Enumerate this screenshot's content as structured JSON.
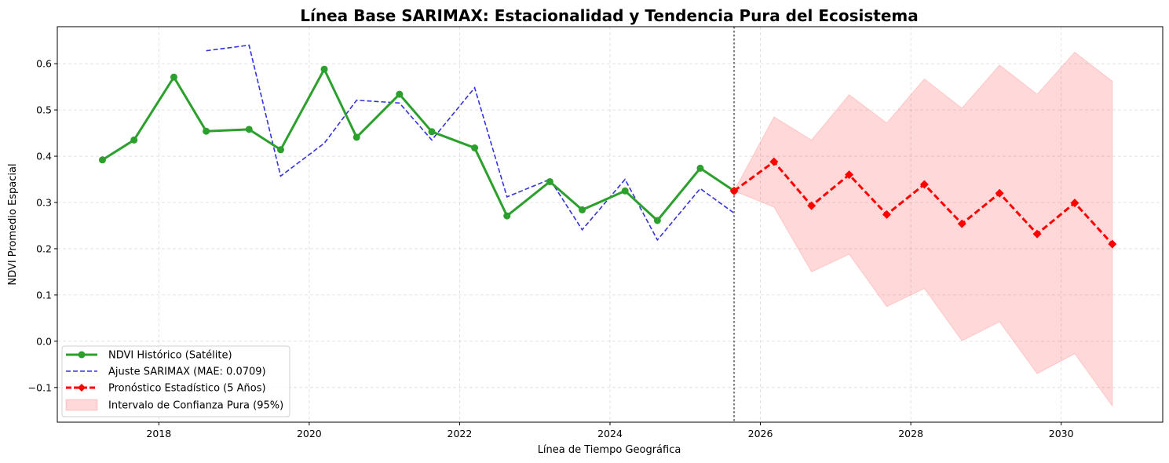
{
  "chart_data": {
    "type": "line",
    "title": "Línea Base SARIMAX: Estacionalidad y Tendencia Pura del Ecosistema",
    "xlabel": "Línea de Tiempo Geográfica",
    "ylabel": "NDVI Promedio Espacial",
    "xlim": [
      2016.65,
      2031.35
    ],
    "ylim": [
      -0.175,
      0.68
    ],
    "x_ticks": [
      2018,
      2020,
      2022,
      2024,
      2026,
      2028,
      2030
    ],
    "x_tick_labels": [
      "2018",
      "2020",
      "2022",
      "2024",
      "2026",
      "2028",
      "2030"
    ],
    "y_ticks": [
      -0.1,
      0.0,
      0.1,
      0.2,
      0.3,
      0.4,
      0.5,
      0.6
    ],
    "y_tick_labels": [
      "−0.1",
      "0.0",
      "0.1",
      "0.2",
      "0.3",
      "0.4",
      "0.5",
      "0.6"
    ],
    "grid": true,
    "legend_position": "bottom-left",
    "vline": {
      "x": 2025.65,
      "color": "#808080",
      "style": "dotted"
    },
    "series": [
      {
        "name": "NDVI Histórico (Satélite)",
        "kind": "line-marker",
        "color": "#2ca02c",
        "x": [
          2017.25,
          2017.67,
          2018.2,
          2018.63,
          2019.2,
          2019.62,
          2020.2,
          2020.63,
          2021.2,
          2021.63,
          2022.2,
          2022.63,
          2023.2,
          2023.63,
          2024.2,
          2024.63,
          2025.2,
          2025.65
        ],
        "y": [
          0.392,
          0.435,
          0.571,
          0.454,
          0.458,
          0.414,
          0.588,
          0.441,
          0.534,
          0.453,
          0.418,
          0.271,
          0.345,
          0.284,
          0.325,
          0.261,
          0.374,
          0.325
        ]
      },
      {
        "name": "Ajuste SARIMAX (MAE: 0.0709)",
        "kind": "dashed-line",
        "color": "#3333dd",
        "x": [
          2018.63,
          2019.2,
          2019.62,
          2020.2,
          2020.63,
          2021.2,
          2021.63,
          2022.2,
          2022.63,
          2023.2,
          2023.63,
          2024.2,
          2024.63,
          2025.2,
          2025.65
        ],
        "y": [
          0.628,
          0.64,
          0.357,
          0.428,
          0.521,
          0.515,
          0.435,
          0.548,
          0.312,
          0.35,
          0.241,
          0.35,
          0.219,
          0.33,
          0.277
        ]
      },
      {
        "name": "Pronóstico Estadístico (5 Años)",
        "kind": "dashed-marker",
        "color": "#ff0000",
        "x": [
          2025.65,
          2026.18,
          2026.68,
          2027.18,
          2027.68,
          2028.18,
          2028.68,
          2029.18,
          2029.68,
          2030.18,
          2030.68
        ],
        "y": [
          0.325,
          0.388,
          0.293,
          0.36,
          0.274,
          0.339,
          0.254,
          0.32,
          0.232,
          0.299,
          0.21
        ]
      }
    ],
    "confidence_band": {
      "name": "Intervalo de Confianza Pura (95%)",
      "color": "#ff0000",
      "x": [
        2025.65,
        2026.18,
        2026.68,
        2027.18,
        2027.68,
        2028.18,
        2028.68,
        2029.18,
        2029.68,
        2030.18,
        2030.68
      ],
      "upper": [
        0.325,
        0.485,
        0.435,
        0.533,
        0.472,
        0.567,
        0.504,
        0.597,
        0.534,
        0.625,
        0.562
      ],
      "lower": [
        0.325,
        0.29,
        0.15,
        0.188,
        0.075,
        0.114,
        0.001,
        0.042,
        -0.07,
        -0.027,
        -0.14
      ]
    }
  }
}
